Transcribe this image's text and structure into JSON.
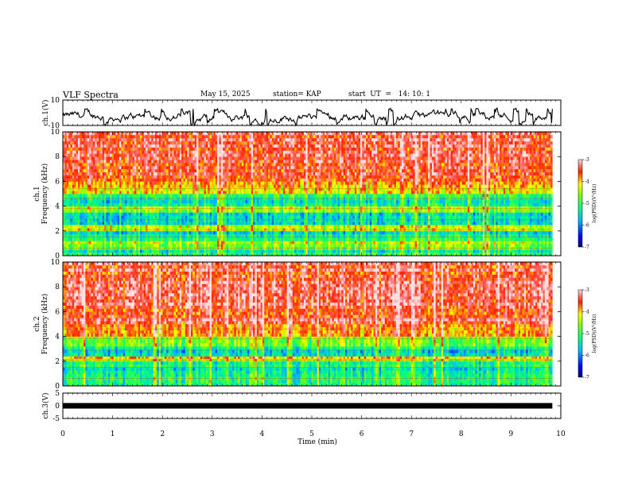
{
  "header": {
    "title": "VLF Spectra",
    "date": "May 15, 2025",
    "station": "station= KAP",
    "start": "start  UT  =   14: 10: 1"
  },
  "chart_data": [
    {
      "type": "line",
      "name": "ch1-waveform",
      "ylabel": "ch.1(V)",
      "ylim": [
        -10,
        10
      ],
      "y_ticks": [
        "10",
        "-10"
      ],
      "xlim": [
        0,
        10
      ],
      "data_end_min": 9.83,
      "description_values": {
        "mean": -3,
        "min": -10,
        "max": 3
      }
    },
    {
      "type": "heatmap",
      "name": "ch1-spectrogram",
      "ylabel_line1": "ch.1",
      "ylabel_line2": "Frequency (kHz)",
      "ylim": [
        0,
        10
      ],
      "y_ticks": [
        "0",
        "2",
        "4",
        "6",
        "8",
        "10"
      ],
      "xlim": [
        0,
        10
      ],
      "data_end_min": 9.83,
      "bands_khz": [
        {
          "from": 0,
          "to": 0.5,
          "level": -5.2
        },
        {
          "from": 0.5,
          "to": 1.2,
          "level": -4.6
        },
        {
          "from": 1.2,
          "to": 2.0,
          "level": -5.3
        },
        {
          "from": 2.0,
          "to": 2.5,
          "level": -4.3
        },
        {
          "from": 2.5,
          "to": 3.5,
          "level": -5.5
        },
        {
          "from": 3.5,
          "to": 4.0,
          "level": -4.5
        },
        {
          "from": 4.0,
          "to": 5.0,
          "level": -5.2
        },
        {
          "from": 5.0,
          "to": 6.0,
          "level": -4.0
        },
        {
          "from": 6.0,
          "to": 10.0,
          "level": -3.4
        }
      ]
    },
    {
      "type": "heatmap",
      "name": "ch2-spectrogram",
      "ylabel_line1": "ch.2",
      "ylabel_line2": "Frequency (kHz)",
      "ylim": [
        0,
        10
      ],
      "y_ticks": [
        "0",
        "2",
        "4",
        "6",
        "8",
        "10"
      ],
      "xlim": [
        0,
        10
      ],
      "data_end_min": 9.83,
      "bands_khz": [
        {
          "from": 0,
          "to": 0.5,
          "level": -5.0
        },
        {
          "from": 0.5,
          "to": 2.0,
          "level": -5.3
        },
        {
          "from": 2.0,
          "to": 2.4,
          "level": -4.3
        },
        {
          "from": 2.4,
          "to": 3.2,
          "level": -5.5
        },
        {
          "from": 3.2,
          "to": 4.0,
          "level": -4.6
        },
        {
          "from": 4.0,
          "to": 5.0,
          "level": -4.0
        },
        {
          "from": 5.0,
          "to": 10.0,
          "level": -3.4
        }
      ]
    },
    {
      "type": "line",
      "name": "ch3-waveform",
      "ylabel": "ch.3(V)",
      "ylim": [
        -5,
        5
      ],
      "y_ticks": [
        "5",
        "0",
        "-5"
      ],
      "xlim": [
        0,
        10
      ],
      "data_end_min": 9.83,
      "value": 0
    }
  ],
  "x_axis": {
    "label": "Time (min)",
    "ticks": [
      "0",
      "1",
      "2",
      "3",
      "4",
      "5",
      "6",
      "7",
      "8",
      "9",
      "10"
    ]
  },
  "colorbar": {
    "label": "log(PSD)(V²/Hz)",
    "range": [
      -7,
      -3
    ],
    "ticks": [
      "-3",
      "-4",
      "-5",
      "-6",
      "-7"
    ]
  }
}
